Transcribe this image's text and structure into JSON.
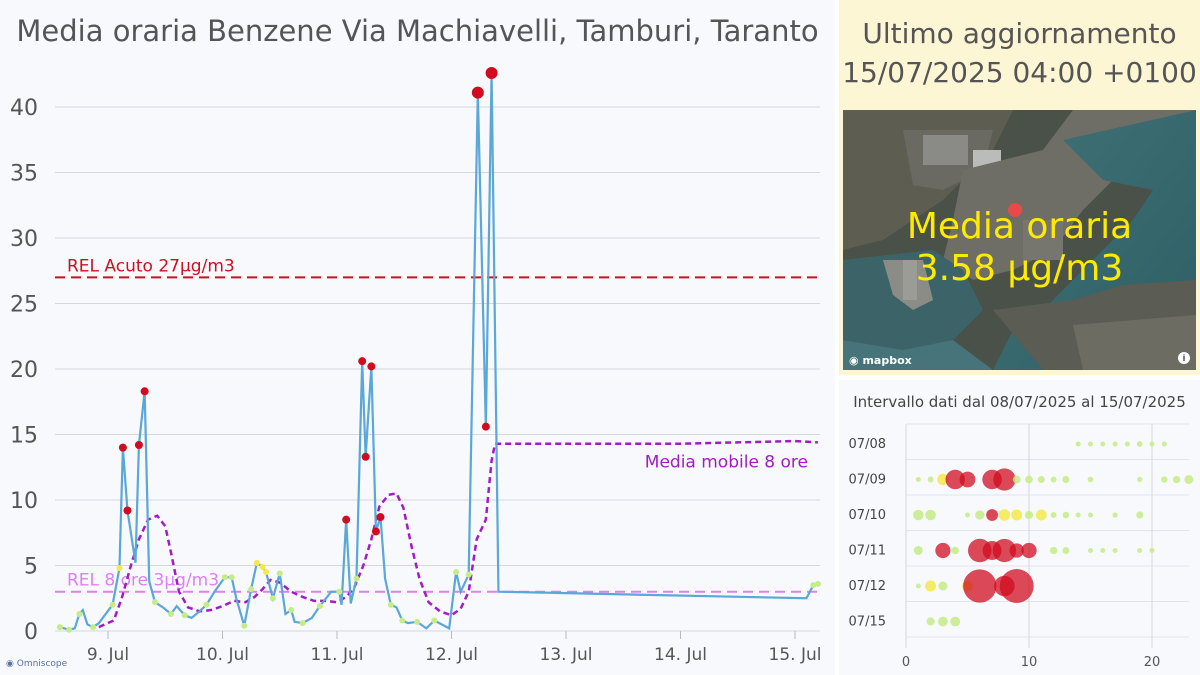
{
  "omniscope_logo": "Omniscope",
  "main_chart": {
    "title": "Media oraria Benzene Via Machiavelli, Tamburi, Taranto",
    "chart_data": {
      "type": "line",
      "y_ticks": [
        0,
        5,
        10,
        15,
        20,
        25,
        30,
        35,
        40
      ],
      "ylim": [
        0,
        45
      ],
      "x_ticks": [
        "9. Jul",
        "10. Jul",
        "11. Jul",
        "12. Jul",
        "13. Jul",
        "14. Jul",
        "15. Jul"
      ],
      "x_range_days": [
        8.55,
        15.25
      ],
      "grid": true,
      "reference_lines": [
        {
          "label": "REL Acuto 27µg/m3",
          "value": 27,
          "color": "#cc1020"
        },
        {
          "label": "REL 8 ore 3µg/m3",
          "value": 3,
          "color": "#e080f0"
        }
      ],
      "series": [
        {
          "name": "Media oraria",
          "color": "#5aa7d8",
          "points": [
            [
              8.58,
              0.3
            ],
            [
              8.62,
              0.2
            ],
            [
              8.66,
              0.1
            ],
            [
              8.71,
              0.2
            ],
            [
              8.75,
              1.3
            ],
            [
              8.78,
              1.6
            ],
            [
              8.82,
              0.5
            ],
            [
              8.87,
              0.3
            ],
            [
              8.92,
              0.6
            ],
            [
              8.98,
              1.3
            ],
            [
              9.04,
              2.0
            ],
            [
              9.1,
              4.8
            ],
            [
              9.13,
              14.0
            ],
            [
              9.17,
              9.2
            ],
            [
              9.24,
              5.2
            ],
            [
              9.27,
              14.2
            ],
            [
              9.32,
              18.3
            ],
            [
              9.36,
              3.8
            ],
            [
              9.41,
              2.2
            ],
            [
              9.48,
              1.8
            ],
            [
              9.55,
              1.3
            ],
            [
              9.6,
              1.9
            ],
            [
              9.67,
              1.2
            ],
            [
              9.73,
              1.0
            ],
            [
              9.8,
              1.5
            ],
            [
              9.86,
              2.0
            ],
            [
              9.93,
              3.0
            ],
            [
              10.02,
              4.1
            ],
            [
              10.08,
              4.1
            ],
            [
              10.12,
              2.5
            ],
            [
              10.19,
              0.4
            ],
            [
              10.25,
              3.2
            ],
            [
              10.3,
              5.2
            ],
            [
              10.35,
              4.9
            ],
            [
              10.38,
              4.5
            ],
            [
              10.44,
              2.5
            ],
            [
              10.5,
              4.4
            ],
            [
              10.55,
              1.3
            ],
            [
              10.6,
              1.6
            ],
            [
              10.63,
              0.7
            ],
            [
              10.7,
              0.6
            ],
            [
              10.78,
              1.0
            ],
            [
              10.85,
              1.9
            ],
            [
              10.95,
              3.0
            ],
            [
              11.02,
              3.0
            ],
            [
              11.04,
              2.0
            ],
            [
              11.08,
              8.5
            ],
            [
              11.12,
              2.1
            ],
            [
              11.17,
              4.0
            ],
            [
              11.22,
              20.6
            ],
            [
              11.25,
              13.3
            ],
            [
              11.3,
              20.2
            ],
            [
              11.34,
              7.6
            ],
            [
              11.38,
              8.7
            ],
            [
              11.42,
              4.0
            ],
            [
              11.47,
              2.0
            ],
            [
              11.52,
              1.8
            ],
            [
              11.57,
              0.8
            ],
            [
              11.62,
              0.6
            ],
            [
              11.7,
              0.7
            ],
            [
              11.78,
              0.2
            ],
            [
              11.85,
              0.8
            ],
            [
              11.98,
              0.2
            ],
            [
              12.04,
              4.5
            ],
            [
              12.08,
              3.0
            ],
            [
              12.15,
              4.3
            ],
            [
              12.23,
              41.1
            ],
            [
              12.3,
              15.6
            ],
            [
              12.35,
              42.6
            ],
            [
              12.41,
              3.0
            ],
            [
              15.1,
              2.5
            ],
            [
              15.16,
              3.5
            ],
            [
              15.2,
              3.6
            ]
          ]
        },
        {
          "name": "Media mobile 8 ore",
          "color": "#a21cc4",
          "points": [
            [
              8.92,
              0.3
            ],
            [
              9.05,
              0.8
            ],
            [
              9.12,
              2.5
            ],
            [
              9.2,
              5.0
            ],
            [
              9.27,
              7.0
            ],
            [
              9.35,
              8.5
            ],
            [
              9.43,
              8.8
            ],
            [
              9.5,
              8.0
            ],
            [
              9.55,
              6.0
            ],
            [
              9.62,
              3.0
            ],
            [
              9.7,
              1.8
            ],
            [
              9.8,
              1.5
            ],
            [
              9.9,
              1.6
            ],
            [
              10.0,
              1.9
            ],
            [
              10.1,
              2.3
            ],
            [
              10.2,
              2.2
            ],
            [
              10.28,
              2.6
            ],
            [
              10.35,
              3.2
            ],
            [
              10.42,
              3.9
            ],
            [
              10.5,
              3.7
            ],
            [
              10.6,
              3.0
            ],
            [
              10.7,
              2.6
            ],
            [
              10.8,
              2.3
            ],
            [
              10.9,
              2.3
            ],
            [
              11.0,
              2.2
            ],
            [
              11.08,
              2.6
            ],
            [
              11.15,
              3.3
            ],
            [
              11.23,
              5.0
            ],
            [
              11.3,
              7.0
            ],
            [
              11.37,
              9.5
            ],
            [
              11.45,
              10.4
            ],
            [
              11.52,
              10.5
            ],
            [
              11.58,
              9.4
            ],
            [
              11.65,
              6.5
            ],
            [
              11.72,
              4.0
            ],
            [
              11.8,
              2.2
            ],
            [
              11.9,
              1.5
            ],
            [
              12.0,
              1.2
            ],
            [
              12.08,
              1.7
            ],
            [
              12.15,
              3.0
            ],
            [
              12.22,
              7.0
            ],
            [
              12.3,
              8.5
            ],
            [
              12.35,
              13.0
            ],
            [
              12.38,
              14.3
            ],
            [
              14.0,
              14.3
            ],
            [
              15.0,
              14.5
            ],
            [
              15.2,
              14.4
            ]
          ]
        }
      ],
      "annotation": "Media mobile 8 ore",
      "high_markers_red": [
        [
          9.13,
          14.0
        ],
        [
          9.17,
          9.2
        ],
        [
          9.27,
          14.2
        ],
        [
          9.32,
          18.3
        ],
        [
          11.08,
          8.5
        ],
        [
          11.22,
          20.6
        ],
        [
          11.25,
          13.3
        ],
        [
          11.3,
          20.2
        ],
        [
          11.34,
          7.6
        ],
        [
          11.38,
          8.7
        ],
        [
          12.23,
          41.1
        ],
        [
          12.3,
          15.6
        ],
        [
          12.35,
          42.6
        ]
      ],
      "markers_green": [
        [
          8.58,
          0.3
        ],
        [
          8.66,
          0.1
        ],
        [
          8.75,
          1.3
        ],
        [
          8.87,
          0.3
        ],
        [
          9.04,
          2.0
        ],
        [
          9.41,
          2.2
        ],
        [
          9.55,
          1.3
        ],
        [
          9.67,
          1.2
        ],
        [
          9.86,
          2.0
        ],
        [
          10.02,
          4.1
        ],
        [
          10.08,
          4.1
        ],
        [
          10.19,
          0.4
        ],
        [
          10.25,
          3.2
        ],
        [
          10.44,
          2.5
        ],
        [
          10.5,
          4.4
        ],
        [
          10.6,
          1.6
        ],
        [
          10.7,
          0.6
        ],
        [
          10.85,
          1.9
        ],
        [
          11.02,
          3.0
        ],
        [
          11.17,
          4.0
        ],
        [
          11.47,
          2.0
        ],
        [
          11.57,
          0.8
        ],
        [
          11.7,
          0.7
        ],
        [
          11.85,
          0.8
        ],
        [
          12.04,
          4.5
        ],
        [
          12.15,
          4.3
        ],
        [
          15.16,
          3.5
        ],
        [
          15.2,
          3.6
        ]
      ],
      "markers_yellow": [
        [
          9.1,
          4.8
        ],
        [
          10.3,
          5.2
        ],
        [
          10.35,
          4.9
        ],
        [
          10.38,
          4.5
        ]
      ]
    }
  },
  "update_panel": {
    "line1": "Ultimo aggiornamento",
    "line2": "15/07/2025 04:00 +0100",
    "map_reading_line1": "Media oraria",
    "map_reading_line2": "3.58 µg/m3",
    "mapbox_label": "mapbox",
    "info_icon": "i"
  },
  "bubble_panel": {
    "title": "Intervallo dati dal 08/07/2025 al 15/07/2025",
    "chart_data": {
      "type": "scatter",
      "x_ticks": [
        0,
        10,
        20
      ],
      "xlim": [
        0,
        23
      ],
      "rows": [
        "07/08",
        "07/09",
        "07/10",
        "07/11",
        "07/12",
        "07/15"
      ],
      "points": [
        {
          "row": "07/08",
          "hour": 14,
          "value": 0.5
        },
        {
          "row": "07/08",
          "hour": 15,
          "value": 0.5
        },
        {
          "row": "07/08",
          "hour": 16,
          "value": 0.5
        },
        {
          "row": "07/08",
          "hour": 17,
          "value": 0.6
        },
        {
          "row": "07/08",
          "hour": 18,
          "value": 0.8
        },
        {
          "row": "07/08",
          "hour": 19,
          "value": 1.2
        },
        {
          "row": "07/08",
          "hour": 20,
          "value": 0.8
        },
        {
          "row": "07/08",
          "hour": 21,
          "value": 0.5
        },
        {
          "row": "07/09",
          "hour": 1,
          "value": 0.6
        },
        {
          "row": "07/09",
          "hour": 2,
          "value": 1.3
        },
        {
          "row": "07/09",
          "hour": 3,
          "value": 4.8
        },
        {
          "row": "07/09",
          "hour": 4,
          "value": 14.0
        },
        {
          "row": "07/09",
          "hour": 5,
          "value": 9.2
        },
        {
          "row": "07/09",
          "hour": 7,
          "value": 14.2
        },
        {
          "row": "07/09",
          "hour": 8,
          "value": 18.3
        },
        {
          "row": "07/09",
          "hour": 9,
          "value": 2.2
        },
        {
          "row": "07/09",
          "hour": 10,
          "value": 2.2
        },
        {
          "row": "07/09",
          "hour": 11,
          "value": 1.8
        },
        {
          "row": "07/09",
          "hour": 12,
          "value": 1.3
        },
        {
          "row": "07/09",
          "hour": 13,
          "value": 1.9
        },
        {
          "row": "07/09",
          "hour": 15,
          "value": 1.2
        },
        {
          "row": "07/09",
          "hour": 19,
          "value": 1.0
        },
        {
          "row": "07/09",
          "hour": 21,
          "value": 1.5
        },
        {
          "row": "07/09",
          "hour": 22,
          "value": 2.0
        },
        {
          "row": "07/09",
          "hour": 23,
          "value": 3.0
        },
        {
          "row": "07/10",
          "hour": 1,
          "value": 4.1
        },
        {
          "row": "07/10",
          "hour": 2,
          "value": 4.1
        },
        {
          "row": "07/10",
          "hour": 5,
          "value": 0.4
        },
        {
          "row": "07/10",
          "hour": 6,
          "value": 3.2
        },
        {
          "row": "07/10",
          "hour": 7,
          "value": 5.2
        },
        {
          "row": "07/10",
          "hour": 8,
          "value": 4.9
        },
        {
          "row": "07/10",
          "hour": 9,
          "value": 4.5
        },
        {
          "row": "07/10",
          "hour": 10,
          "value": 2.5
        },
        {
          "row": "07/10",
          "hour": 11,
          "value": 4.4
        },
        {
          "row": "07/10",
          "hour": 12,
          "value": 1.3
        },
        {
          "row": "07/10",
          "hour": 13,
          "value": 1.6
        },
        {
          "row": "07/10",
          "hour": 14,
          "value": 0.7
        },
        {
          "row": "07/10",
          "hour": 15,
          "value": 0.6
        },
        {
          "row": "07/10",
          "hour": 17,
          "value": 1.0
        },
        {
          "row": "07/10",
          "hour": 19,
          "value": 1.9
        },
        {
          "row": "07/11",
          "hour": 1,
          "value": 3.0
        },
        {
          "row": "07/11",
          "hour": 3,
          "value": 8.5
        },
        {
          "row": "07/11",
          "hour": 4,
          "value": 2.1
        },
        {
          "row": "07/11",
          "hour": 6,
          "value": 20.6
        },
        {
          "row": "07/11",
          "hour": 7,
          "value": 13.3
        },
        {
          "row": "07/11",
          "hour": 8,
          "value": 20.2
        },
        {
          "row": "07/11",
          "hour": 9,
          "value": 7.6
        },
        {
          "row": "07/11",
          "hour": 10,
          "value": 8.7
        },
        {
          "row": "07/11",
          "hour": 12,
          "value": 2.0
        },
        {
          "row": "07/11",
          "hour": 13,
          "value": 1.8
        },
        {
          "row": "07/11",
          "hour": 15,
          "value": 0.8
        },
        {
          "row": "07/11",
          "hour": 16,
          "value": 0.6
        },
        {
          "row": "07/11",
          "hour": 17,
          "value": 0.7
        },
        {
          "row": "07/11",
          "hour": 19,
          "value": 0.2
        },
        {
          "row": "07/11",
          "hour": 20,
          "value": 0.8
        },
        {
          "row": "07/12",
          "hour": 1,
          "value": 0.2
        },
        {
          "row": "07/12",
          "hour": 2,
          "value": 4.5
        },
        {
          "row": "07/12",
          "hour": 3,
          "value": 3.0
        },
        {
          "row": "07/12",
          "hour": 5,
          "value": 4.3
        },
        {
          "row": "07/12",
          "hour": 6,
          "value": 41.1
        },
        {
          "row": "07/12",
          "hour": 8,
          "value": 15.6
        },
        {
          "row": "07/12",
          "hour": 9,
          "value": 42.6
        },
        {
          "row": "07/15",
          "hour": 2,
          "value": 2.5
        },
        {
          "row": "07/15",
          "hour": 3,
          "value": 3.5
        },
        {
          "row": "07/15",
          "hour": 4,
          "value": 3.6
        }
      ]
    }
  },
  "colors": {
    "line": "#5aa7d8",
    "moving_avg": "#a21cc4",
    "rel_acute": "#cc1020",
    "rel_8h": "#e080f0",
    "low": "#c5ec86",
    "mid": "#f5e94a",
    "high": "#d10c1f"
  }
}
